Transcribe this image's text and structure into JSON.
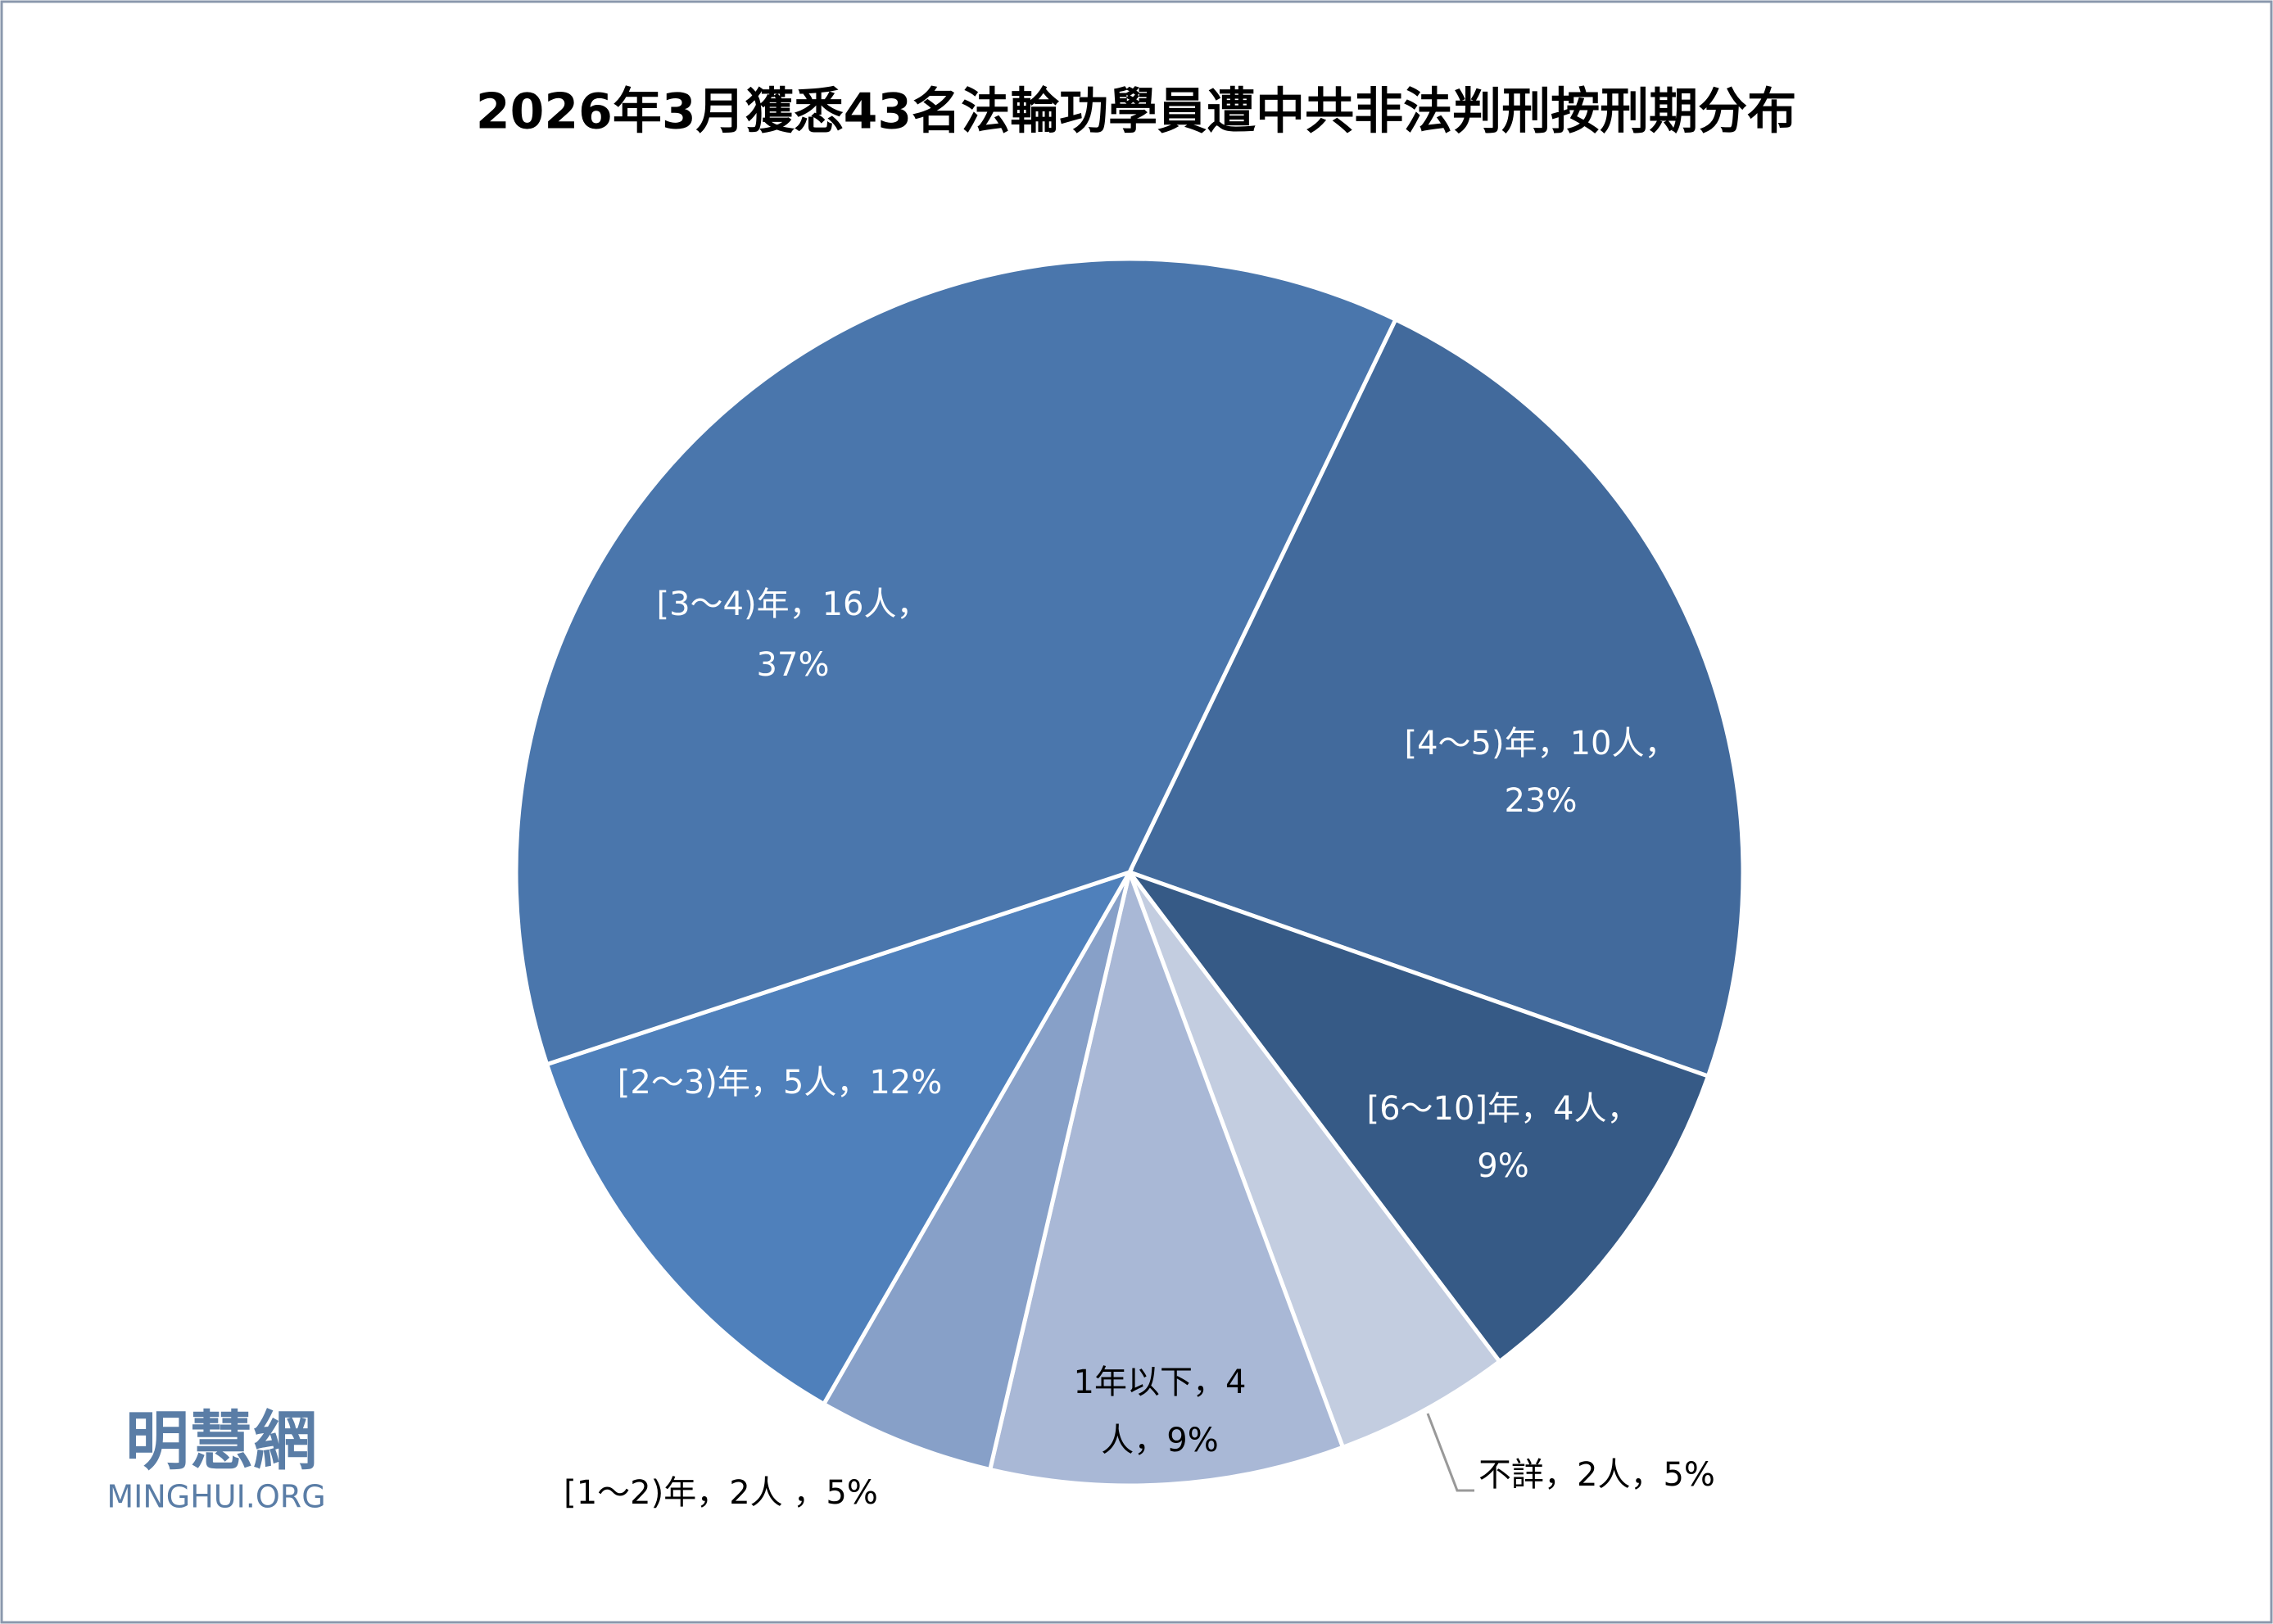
{
  "chart_data": {
    "type": "pie",
    "title": "2026年3月獲悉43名法輪功學員遭中共非法判刑按刑期分布",
    "values": [
      10,
      4,
      2,
      4,
      2,
      5,
      16
    ],
    "value_labels": [
      [
        "[4～5)年，10人，",
        "23%"
      ],
      [
        "[6～10]年，4人，",
        "9%"
      ],
      [
        "不詳，2人，5%"
      ],
      [
        "1年以下，4",
        "人，9%"
      ],
      [
        "[1～2)年，2人 ，5%"
      ],
      [
        "[2～3)年，5人，12%"
      ],
      [
        "[3～4)年，16人，",
        "37%"
      ]
    ],
    "colors": [
      "#426a9c",
      "#365a86",
      "#c3cde0",
      "#a9b8d6",
      "#87a0c8",
      "#4f80bb",
      "#4a76ac"
    ]
  },
  "watermark": {
    "name": "明慧網",
    "site": "MINGHUI.ORG"
  }
}
